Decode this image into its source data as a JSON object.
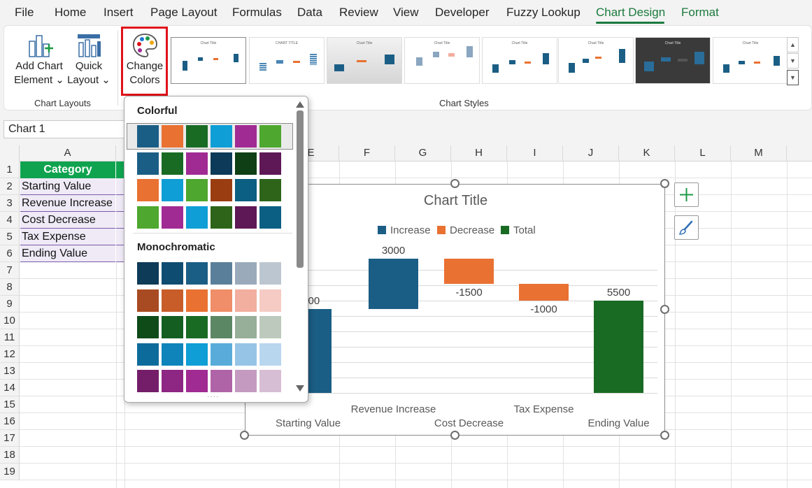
{
  "menu": {
    "tabs": [
      "File",
      "Home",
      "Insert",
      "Page Layout",
      "Formulas",
      "Data",
      "Review",
      "View",
      "Developer",
      "Fuzzy Lookup",
      "Chart Design",
      "Format"
    ],
    "active": "Chart Design"
  },
  "ribbon": {
    "add_chart_element": [
      "Add Chart",
      "Element"
    ],
    "quick_layout": [
      "Quick",
      "Layout"
    ],
    "change_colors": [
      "Change",
      "Colors"
    ],
    "group_chart_layouts": "Chart Layouts",
    "group_chart_styles": "Chart Styles",
    "thumb_titles": [
      "Chart Title",
      "CHART TITLE",
      "Chart Title",
      "Chart Title",
      "Chart Title",
      "Chart Title",
      "Chart Title",
      "Chart Title"
    ]
  },
  "namebox": "Chart 1",
  "columns": [
    "A",
    "",
    "",
    "",
    "E",
    "F",
    "G",
    "H",
    "I",
    "J",
    "K",
    "L",
    "M"
  ],
  "rows": [
    "1",
    "2",
    "3",
    "4",
    "5",
    "6",
    "7",
    "8",
    "9",
    "10",
    "11",
    "12",
    "13",
    "14",
    "15",
    "16",
    "17",
    "18",
    "19"
  ],
  "cells": {
    "header": "Category",
    "categories": [
      "Starting Value",
      "Revenue Increase",
      "Cost Decrease",
      "Tax Expense",
      "Ending Value"
    ]
  },
  "dropdown": {
    "colorful_label": "Colorful",
    "monochromatic_label": "Monochromatic",
    "colorful_rows": [
      [
        "#1b5e85",
        "#e97132",
        "#196b24",
        "#0f9ed5",
        "#a02b93",
        "#4ea72e"
      ],
      [
        "#1b5e85",
        "#196b24",
        "#a02b93",
        "#0d3a58",
        "#0f3f14",
        "#5f1856"
      ],
      [
        "#e97132",
        "#0f9ed5",
        "#4ea72e",
        "#9a3e12",
        "#0b5f82",
        "#2d6419"
      ],
      [
        "#4ea72e",
        "#a02b93",
        "#0f9ed5",
        "#2d6419",
        "#5f1856",
        "#0b5f82"
      ]
    ],
    "mono_rows": [
      [
        "#0e3b58",
        "#0f4c72",
        "#1b5e85",
        "#5a7f9a",
        "#9aaabb",
        "#bcc6d0"
      ],
      [
        "#a94b22",
        "#c85d2a",
        "#e97132",
        "#ef8e68",
        "#f2ae9f",
        "#f5cbc4"
      ],
      [
        "#0f4b19",
        "#145e21",
        "#196b24",
        "#5c8765",
        "#97ae99",
        "#bcc9bc"
      ],
      [
        "#0d6b9b",
        "#0e84ba",
        "#0f9ed5",
        "#59acd9",
        "#96c4e6",
        "#b9d6ef"
      ],
      [
        "#741e6a",
        "#8e2683",
        "#a02b93",
        "#b064a8",
        "#c49ac0",
        "#d6bed4"
      ]
    ]
  },
  "chart_data": {
    "type": "bar",
    "subtype": "waterfall",
    "title": "Chart Title",
    "categories": [
      "Starting Value",
      "Revenue Increase",
      "Cost Decrease",
      "Tax Expense",
      "Ending Value"
    ],
    "values": [
      5000,
      3000,
      -1500,
      -1000,
      5500
    ],
    "data_labels": [
      "5000",
      "3000",
      "-1500",
      "-1000",
      "5500"
    ],
    "legend": [
      {
        "name": "Increase",
        "color": "#1b5e85"
      },
      {
        "name": "Decrease",
        "color": "#e97132"
      },
      {
        "name": "Total",
        "color": "#196b24"
      }
    ],
    "legend_position": "top",
    "grid": true
  }
}
